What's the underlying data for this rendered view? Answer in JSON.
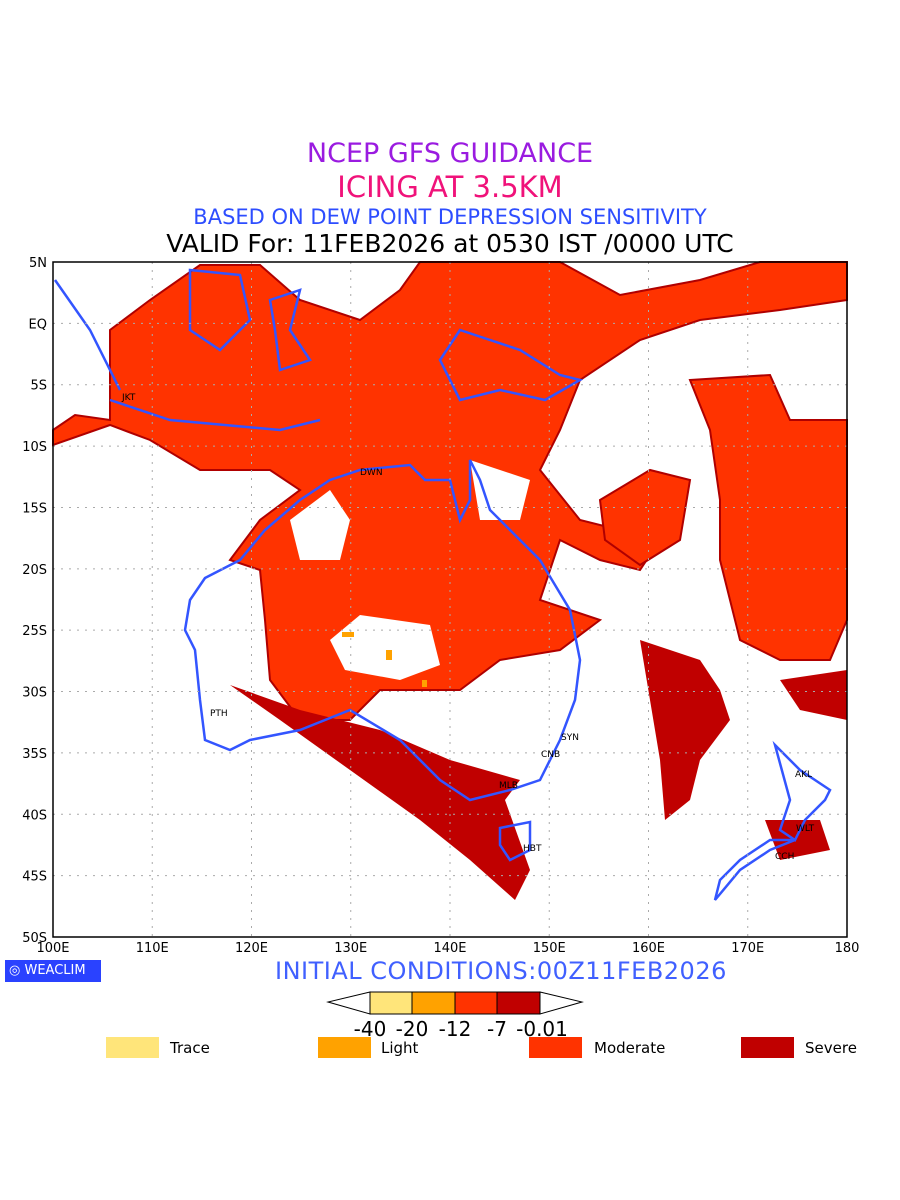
{
  "title": {
    "line1": "NCEP GFS GUIDANCE",
    "line2": "ICING AT 3.5KM",
    "line3": "BASED ON DEW POINT DEPRESSION SENSITIVITY",
    "line4": "VALID For: 11FEB2026 at 0530 IST /0000 UTC"
  },
  "axes": {
    "lat_labels": [
      "5N",
      "EQ",
      "5S",
      "10S",
      "15S",
      "20S",
      "25S",
      "30S",
      "35S",
      "40S",
      "45S",
      "50S"
    ],
    "lon_labels": [
      "100E",
      "110E",
      "120E",
      "130E",
      "140E",
      "150E",
      "160E",
      "170E",
      "180"
    ]
  },
  "stations": [
    "JKT",
    "DWN",
    "PTH",
    "SYN",
    "CNB",
    "MLB",
    "HBT",
    "AKL",
    "WLT",
    "CCH"
  ],
  "logo": "WEACLIM",
  "initial_conditions": "INITIAL CONDITIONS:00Z11FEB2026",
  "colorbar": {
    "ticks": [
      "-40",
      "-20",
      "-12",
      "-7",
      "-0.01"
    ],
    "colors": [
      "#ffe57a",
      "#ffa200",
      "#ff3300",
      "#c00000"
    ]
  },
  "legend": [
    {
      "label": "Trace",
      "color": "#ffe57a"
    },
    {
      "label": "Light",
      "color": "#ffa200"
    },
    {
      "label": "Moderate",
      "color": "#ff3300"
    },
    {
      "label": "Severe",
      "color": "#c00000"
    }
  ]
}
